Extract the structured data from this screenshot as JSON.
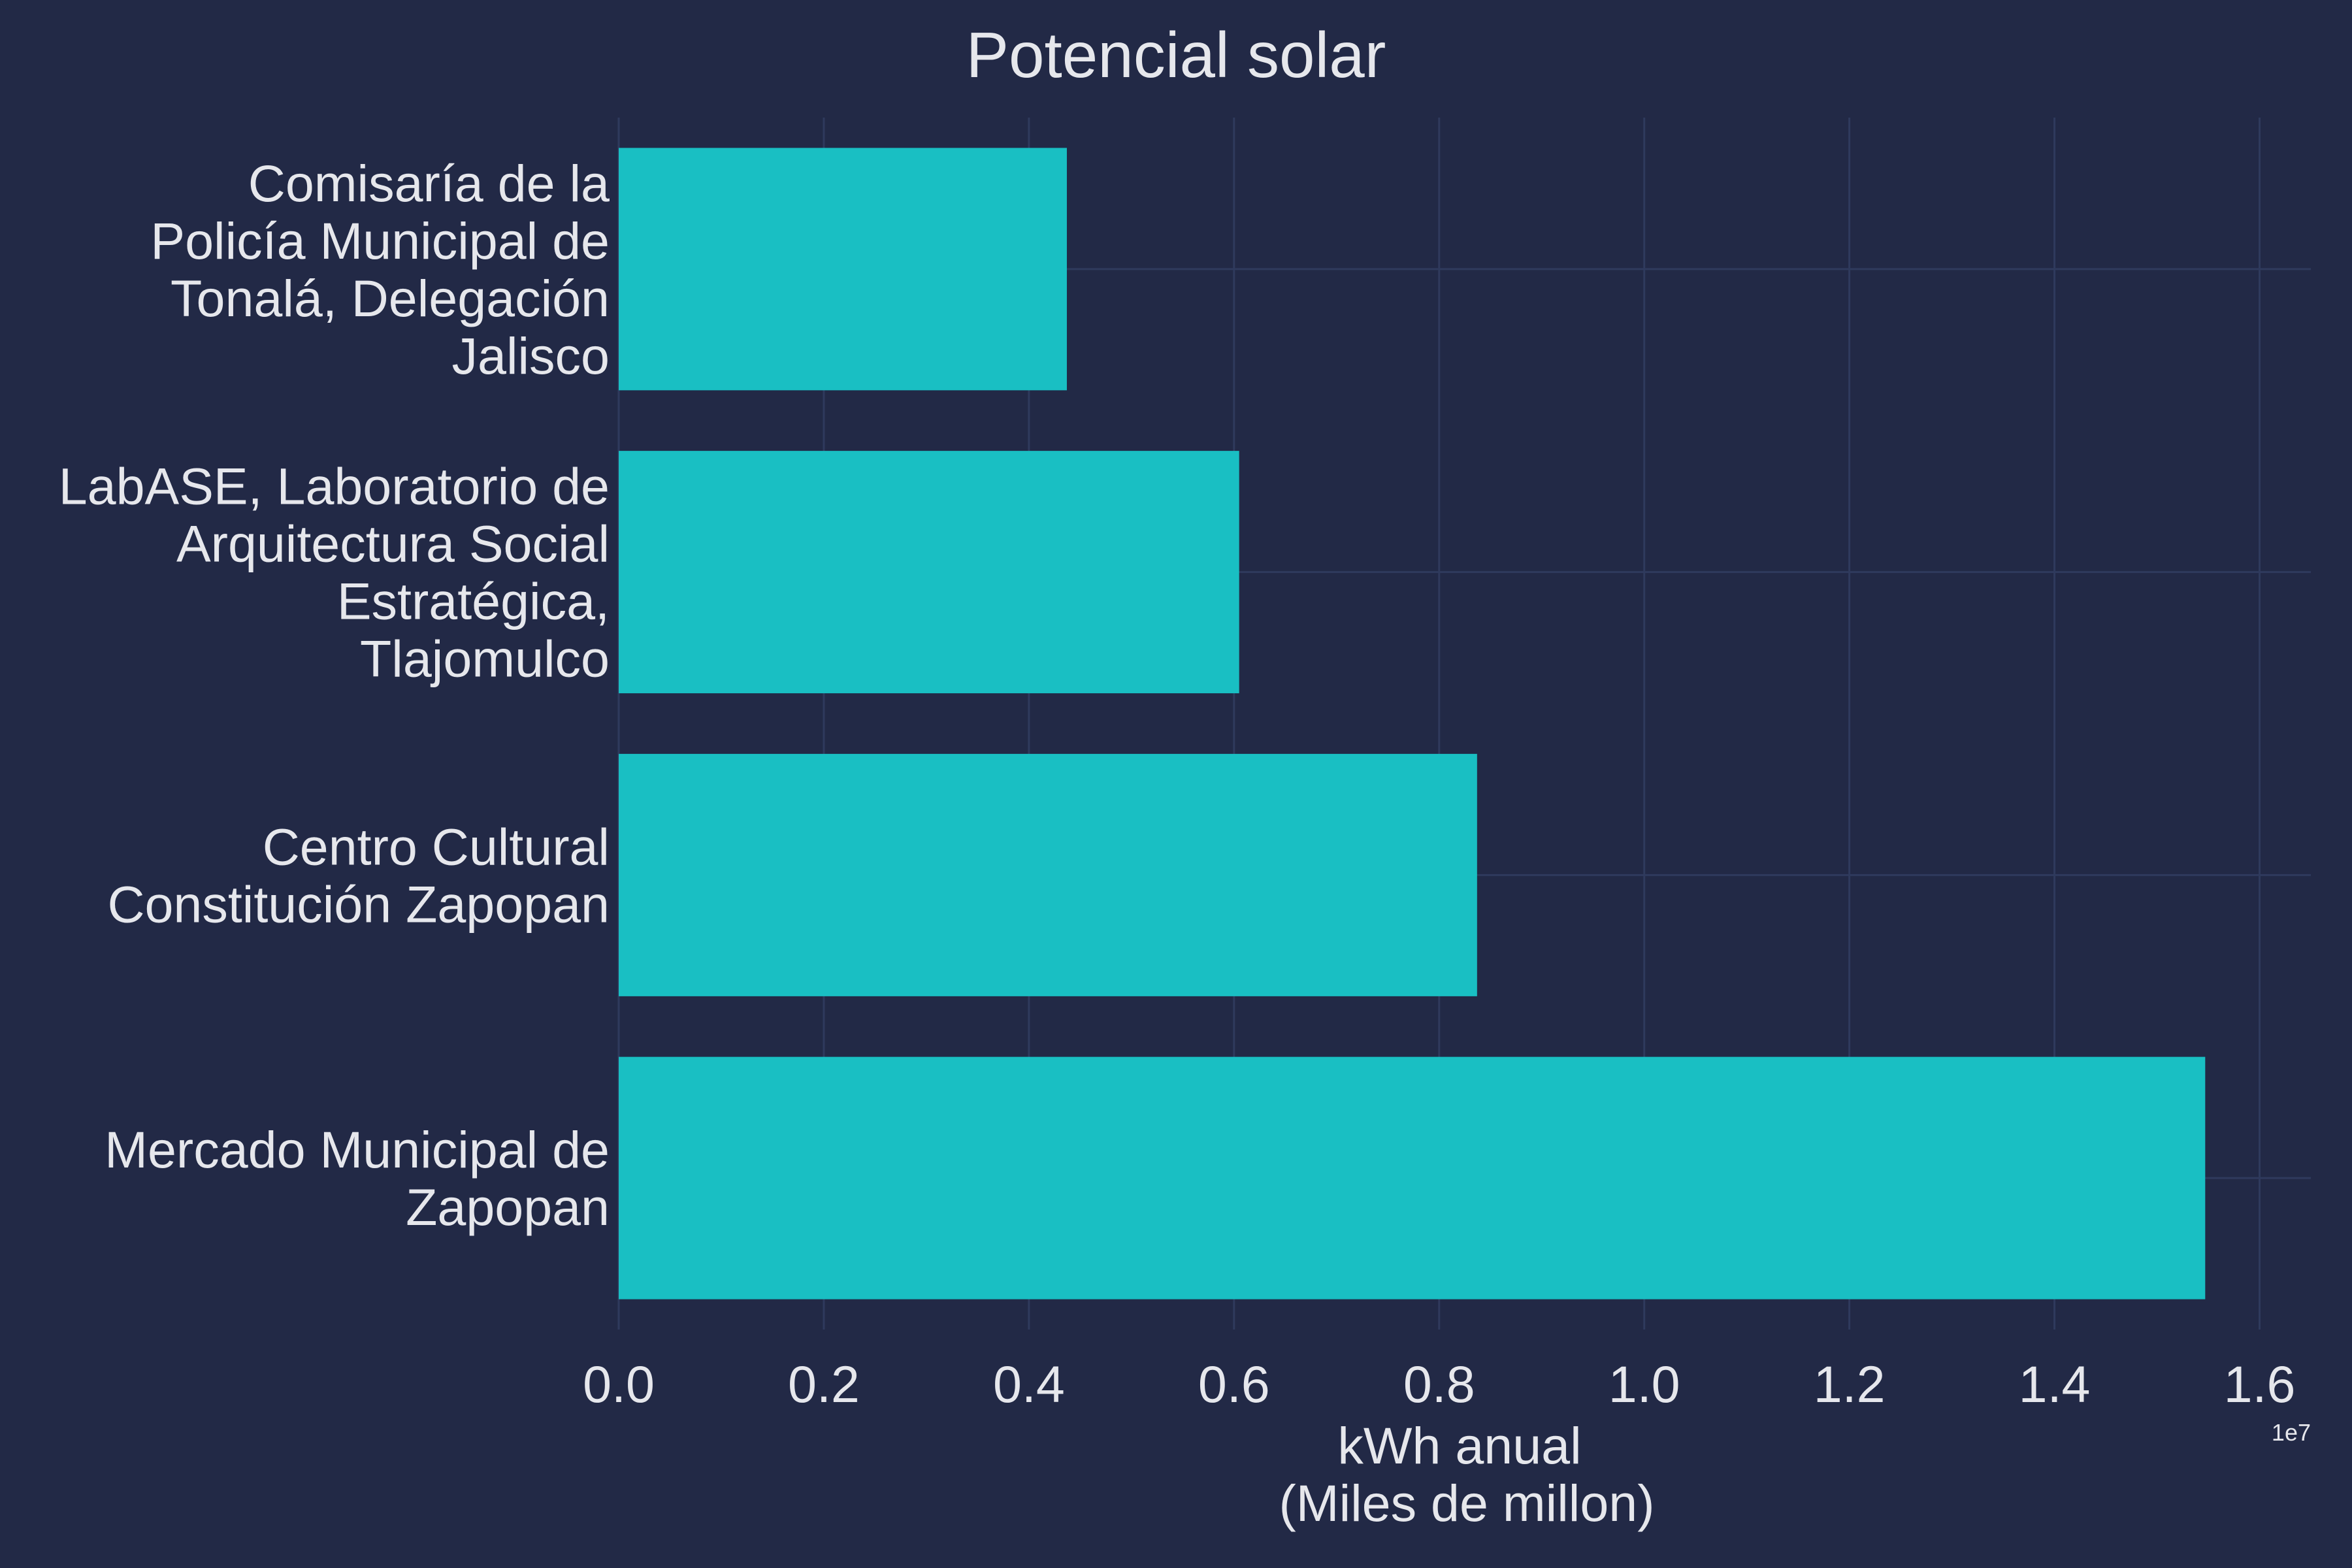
{
  "colors": {
    "background": "#222946",
    "bar": "#19bfc3",
    "text": "#e6e7ec",
    "grid": "#2f3a5d"
  },
  "chart_data": {
    "type": "bar",
    "orientation": "horizontal",
    "title": "Potencial solar",
    "xlabel": [
      "kWh anual",
      "(Miles de millon)"
    ],
    "ylabel": "",
    "x_offset_label": "1e7",
    "xlim": [
      0,
      16500000
    ],
    "xticks": [
      0,
      2000000,
      4000000,
      6000000,
      8000000,
      10000000,
      12000000,
      14000000,
      16000000
    ],
    "xtick_labels": [
      "0.0",
      "0.2",
      "0.4",
      "0.6",
      "0.8",
      "1.0",
      "1.2",
      "1.4",
      "1.6"
    ],
    "grid": true,
    "categories": [
      [
        "Comisaría de la",
        "Policía Municipal de",
        "Tonalá, Delegación",
        "Jalisco"
      ],
      [
        "LabASE, Laboratorio de",
        "Arquitectura Social",
        "Estratégica,",
        "Tlajomulco"
      ],
      [
        "Centro Cultural",
        "Constitución Zapopan"
      ],
      [
        "Mercado Municipal de",
        "Zapopan"
      ]
    ],
    "values": [
      4370000,
      6050000,
      8370000,
      15470000
    ]
  }
}
